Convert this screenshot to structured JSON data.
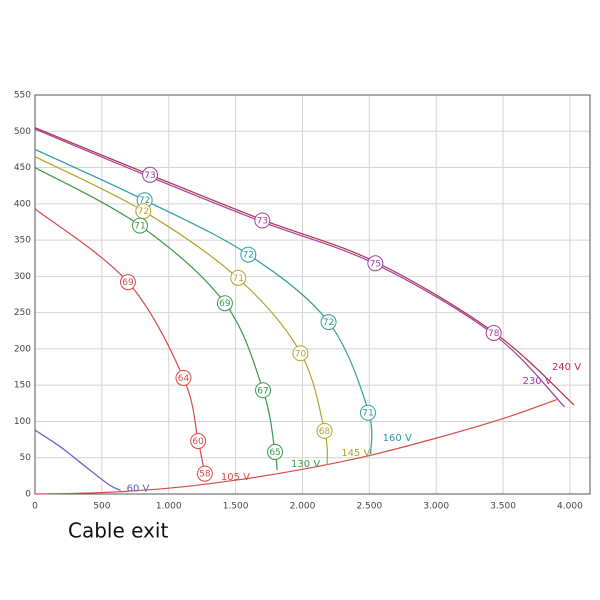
{
  "chart_data": {
    "type": "line",
    "footer": "Cable exit",
    "xlim": [
      0,
      4150
    ],
    "ylim": [
      0,
      550
    ],
    "xticks": [
      0,
      500,
      {
        "value": 1000,
        "label": "1.000"
      },
      {
        "value": 1500,
        "label": "1.500"
      },
      {
        "value": 2000,
        "label": "2.000"
      },
      {
        "value": 2500,
        "label": "2.500"
      },
      {
        "value": 3000,
        "label": "3.000"
      },
      {
        "value": 3500,
        "label": "3.500"
      },
      {
        "value": 4000,
        "label": "4.000"
      }
    ],
    "yticks": [
      0,
      50,
      100,
      150,
      200,
      250,
      300,
      350,
      400,
      450,
      500,
      550
    ],
    "grid": true,
    "series": [
      {
        "name": "240 V",
        "color": "#b03040",
        "x": [
          0,
          860,
          1700,
          2545,
          3430,
          4030
        ],
        "y": [
          505,
          440,
          378,
          320,
          223,
          123
        ],
        "markers": []
      },
      {
        "name": "230 V",
        "color": "#a040a0",
        "x": [
          0,
          860,
          1700,
          2545,
          3430,
          3960
        ],
        "y": [
          503,
          437,
          375,
          317,
          220,
          120
        ],
        "markers": [
          {
            "x": 860,
            "y": 440,
            "value": 73
          },
          {
            "x": 1700,
            "y": 377,
            "value": 73
          },
          {
            "x": 2545,
            "y": 318,
            "value": 75
          },
          {
            "x": 3430,
            "y": 222,
            "value": 78
          }
        ]
      },
      {
        "name": "160 V",
        "color": "#2a9d9d",
        "x": [
          0,
          820,
          1595,
          2195,
          2490,
          2510
        ],
        "y": [
          475,
          405,
          330,
          237,
          116,
          55
        ],
        "markers": [
          {
            "x": 820,
            "y": 405,
            "value": 72
          },
          {
            "x": 1595,
            "y": 330,
            "value": 72
          },
          {
            "x": 2195,
            "y": 237,
            "value": 72
          },
          {
            "x": 2490,
            "y": 112,
            "value": 71
          }
        ]
      },
      {
        "name": "145 V",
        "color": "#b5a22a",
        "x": [
          0,
          810,
          1520,
          1985,
          2165,
          2185
        ],
        "y": [
          465,
          390,
          297,
          195,
          87,
          40
        ],
        "markers": [
          {
            "x": 810,
            "y": 390,
            "value": 72
          },
          {
            "x": 1520,
            "y": 298,
            "value": 71
          },
          {
            "x": 1985,
            "y": 194,
            "value": 70
          },
          {
            "x": 2165,
            "y": 87,
            "value": 68
          }
        ]
      },
      {
        "name": "130 V",
        "color": "#3a9a4a",
        "x": [
          0,
          785,
          1420,
          1705,
          1795,
          1810
        ],
        "y": [
          450,
          370,
          263,
          143,
          58,
          33
        ],
        "markers": [
          {
            "x": 785,
            "y": 370,
            "value": 71
          },
          {
            "x": 1420,
            "y": 263,
            "value": 69
          },
          {
            "x": 1705,
            "y": 143,
            "value": 67
          },
          {
            "x": 1795,
            "y": 58,
            "value": 65
          }
        ]
      },
      {
        "name": "105 V",
        "color": "#d84a4a",
        "x": [
          0,
          695,
          1110,
          1220,
          1270,
          1285
        ],
        "y": [
          393,
          292,
          160,
          73,
          28,
          19
        ],
        "markers": [
          {
            "x": 695,
            "y": 292,
            "value": 69
          },
          {
            "x": 1110,
            "y": 160,
            "value": 64
          },
          {
            "x": 1220,
            "y": 73,
            "value": 60
          },
          {
            "x": 1270,
            "y": 28,
            "value": 58
          }
        ]
      },
      {
        "name": "60 V",
        "color": "#5a5acc",
        "x": [
          0,
          190,
          410,
          560,
          640
        ],
        "y": [
          88,
          65,
          33,
          12,
          5
        ],
        "markers": []
      }
    ],
    "system_curve": {
      "color": "#d84a4a",
      "x": [
        0,
        500,
        1000,
        1500,
        2000,
        2500,
        3000,
        3500,
        3900
      ],
      "y": [
        0,
        2,
        8,
        19,
        34,
        53,
        77,
        104,
        130
      ]
    }
  }
}
